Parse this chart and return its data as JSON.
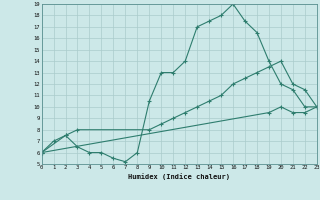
{
  "xlabel": "Humidex (Indice chaleur)",
  "bg_color": "#cce8e8",
  "line_color": "#2e7d6e",
  "grid_color": "#aacccc",
  "xlim": [
    0,
    23
  ],
  "ylim": [
    5,
    19
  ],
  "xticks": [
    0,
    1,
    2,
    3,
    4,
    5,
    6,
    7,
    8,
    9,
    10,
    11,
    12,
    13,
    14,
    15,
    16,
    17,
    18,
    19,
    20,
    21,
    22,
    23
  ],
  "yticks": [
    5,
    6,
    7,
    8,
    9,
    10,
    11,
    12,
    13,
    14,
    15,
    16,
    17,
    18,
    19
  ],
  "curve1_x": [
    0,
    1,
    2,
    3,
    4,
    5,
    6,
    7,
    8,
    9,
    10,
    11,
    12,
    13,
    14,
    15,
    16,
    17,
    18,
    19,
    20,
    21,
    22,
    23
  ],
  "curve1_y": [
    6,
    7,
    7.5,
    6.5,
    6,
    6,
    5.5,
    5.2,
    6,
    10.5,
    13,
    13,
    14,
    17,
    17.5,
    18,
    19,
    17.5,
    16.5,
    14,
    12,
    11.5,
    10,
    10
  ],
  "curve2_x": [
    0,
    2,
    3,
    9,
    10,
    11,
    12,
    13,
    14,
    15,
    16,
    17,
    18,
    19,
    20,
    21,
    22,
    23
  ],
  "curve2_y": [
    6,
    7.5,
    8,
    8,
    8.5,
    9,
    9.5,
    10,
    10.5,
    11,
    12,
    12.5,
    13,
    13.5,
    14,
    12,
    11.5,
    10
  ],
  "curve3_x": [
    0,
    19,
    20,
    21,
    22,
    23
  ],
  "curve3_y": [
    6,
    9.5,
    10,
    9.5,
    9.5,
    10
  ]
}
